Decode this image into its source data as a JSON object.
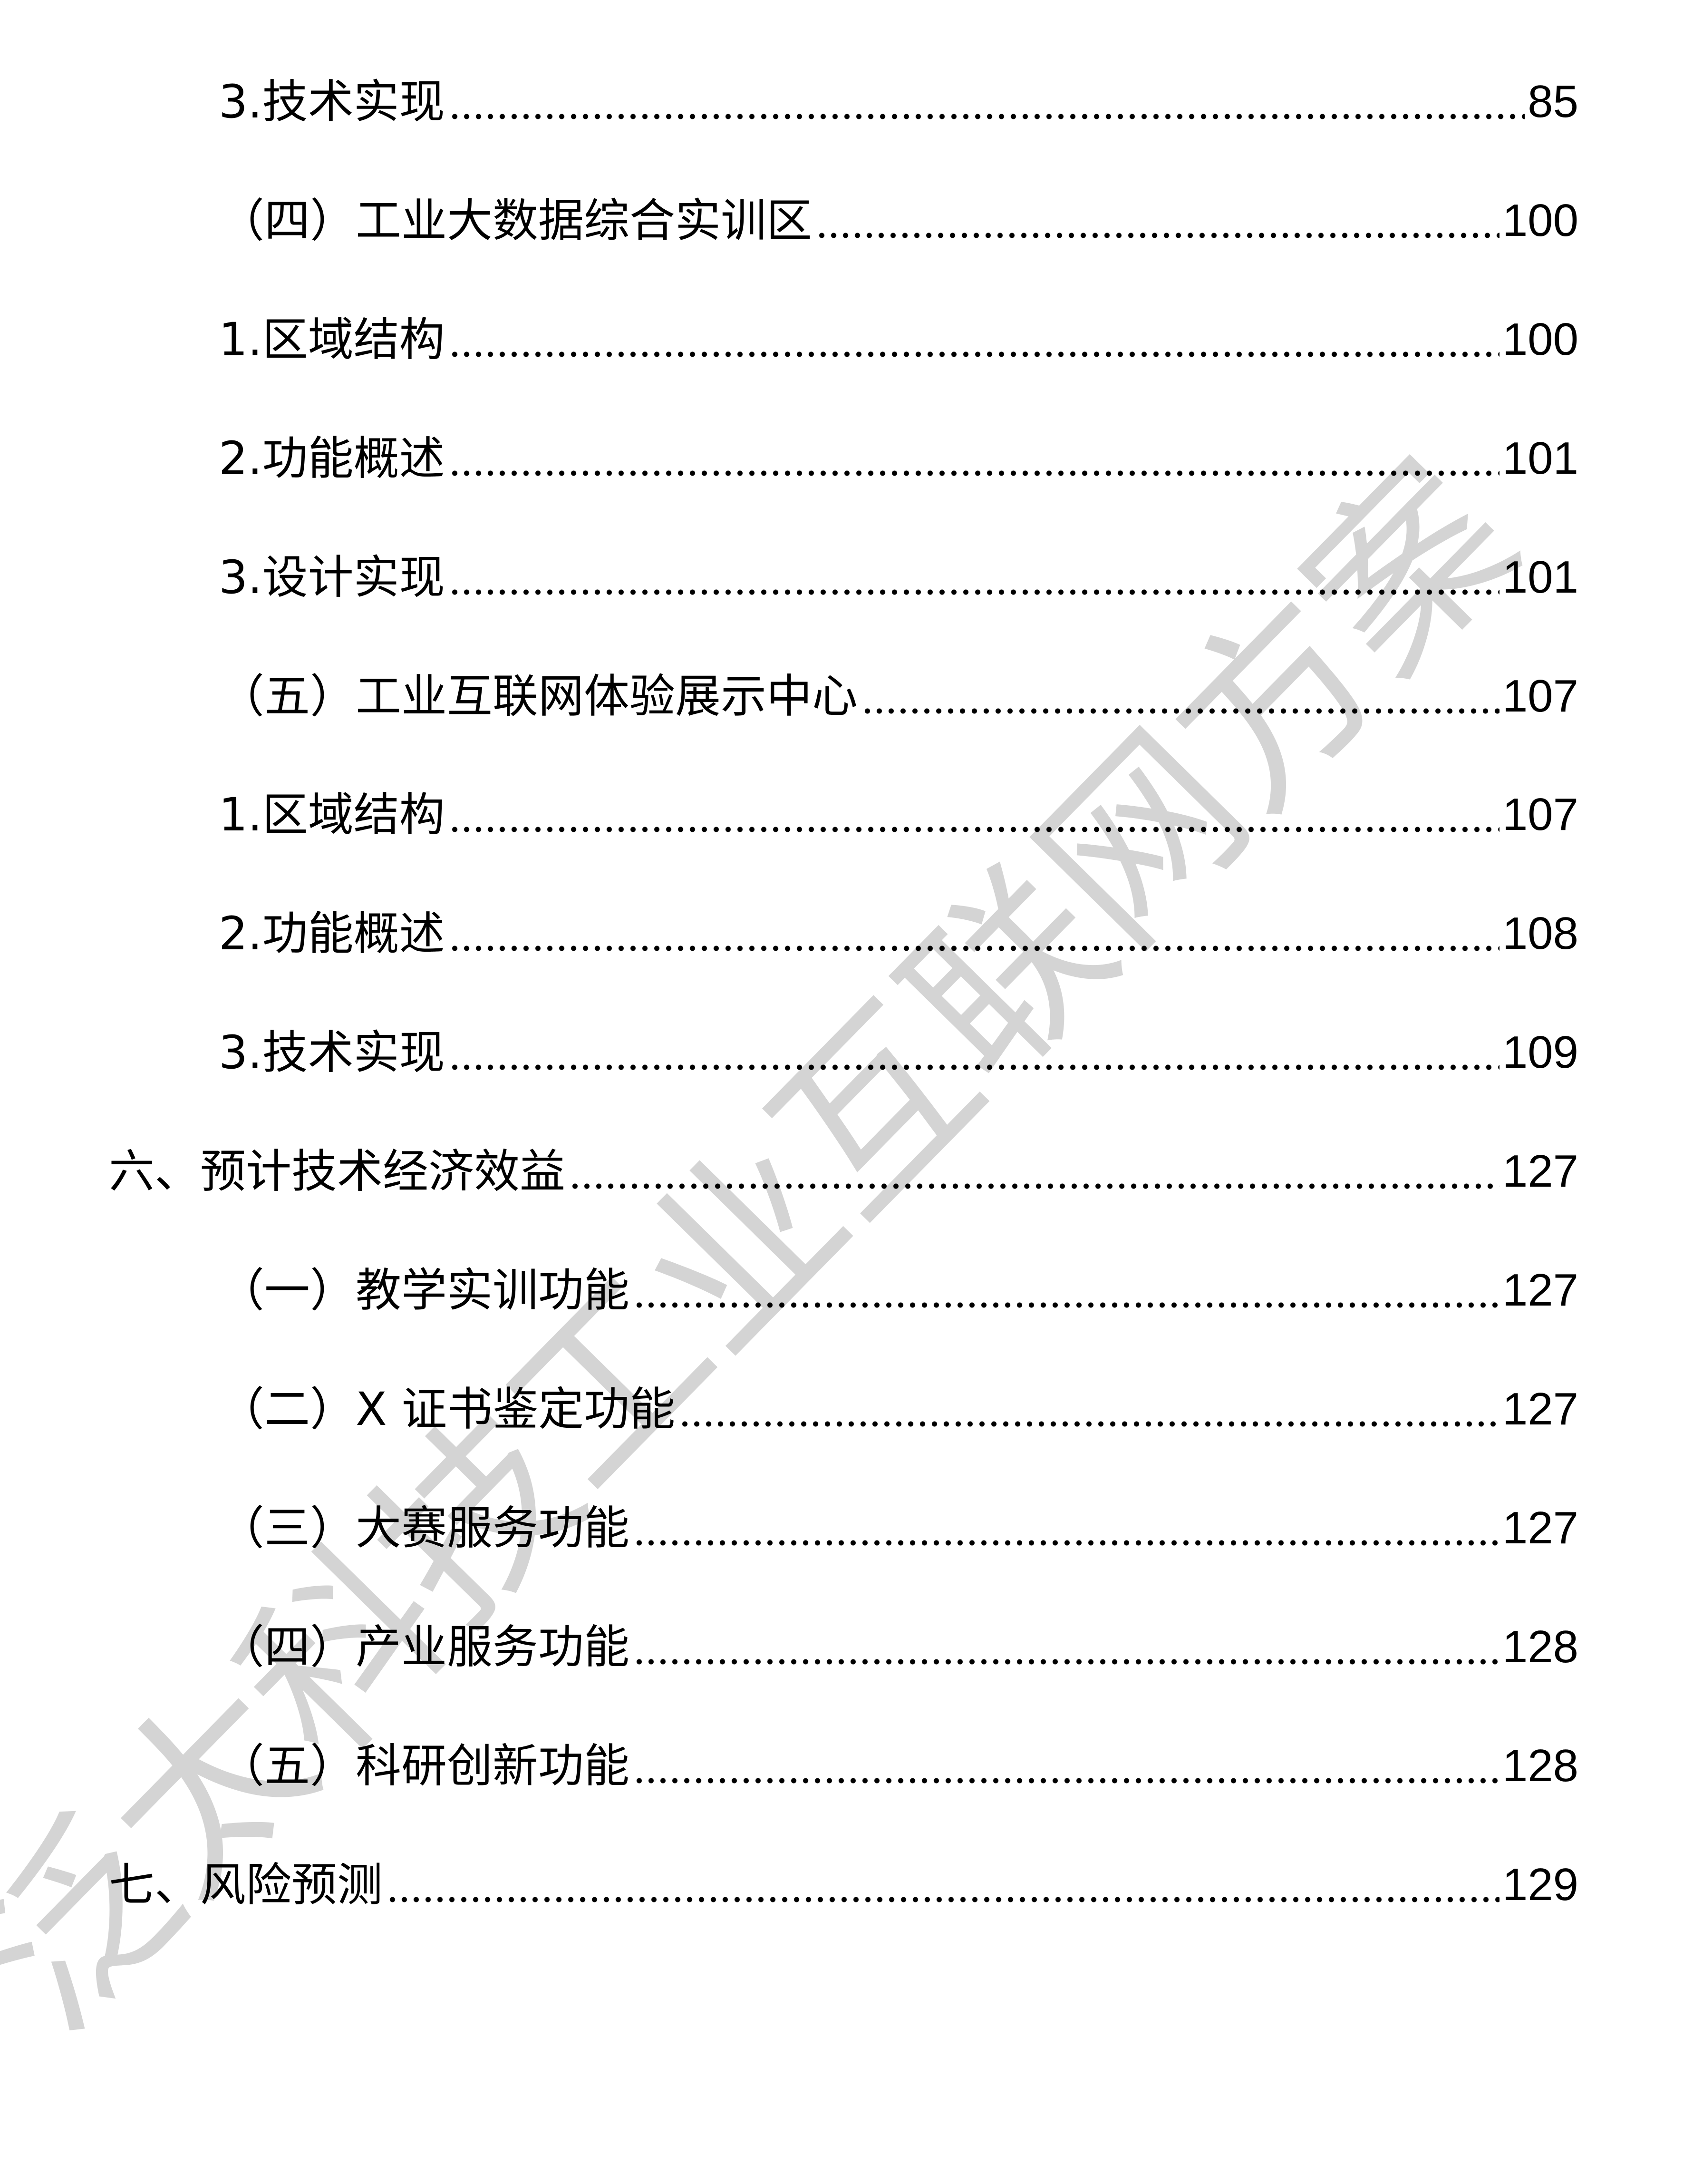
{
  "toc": [
    {
      "level": 2,
      "title": "3.技术实现",
      "page": "85"
    },
    {
      "level": 2,
      "title": "（四）工业大数据综合实训区",
      "page": "100"
    },
    {
      "level": 2,
      "title": "1.区域结构",
      "page": "100"
    },
    {
      "level": 2,
      "title": "2.功能概述",
      "page": "101"
    },
    {
      "level": 2,
      "title": "3.设计实现",
      "page": "101"
    },
    {
      "level": 2,
      "title": "（五）工业互联网体验展示中心",
      "page": "107"
    },
    {
      "level": 2,
      "title": "1.区域结构",
      "page": "107"
    },
    {
      "level": 2,
      "title": "2.功能概述",
      "page": "108"
    },
    {
      "level": 2,
      "title": "3.技术实现",
      "page": "109"
    },
    {
      "level": 1,
      "title": "六、预计技术经济效益",
      "page": "127"
    },
    {
      "level": 2,
      "title": "（一）教学实训功能",
      "page": "127"
    },
    {
      "level": 2,
      "title": "（二）X 证书鉴定功能",
      "page": "127"
    },
    {
      "level": 2,
      "title": "（三）大赛服务功能",
      "page": "127"
    },
    {
      "level": 2,
      "title": "（四）产业服务功能",
      "page": "128"
    },
    {
      "level": 2,
      "title": "（五）科研创新功能",
      "page": "128"
    },
    {
      "level": 1,
      "title": "七、风险预测",
      "page": "129"
    }
  ],
  "watermark": "泛太科技工业互联网方案",
  "colors": {
    "text": "#000000",
    "watermark": "#cfcfcf"
  }
}
